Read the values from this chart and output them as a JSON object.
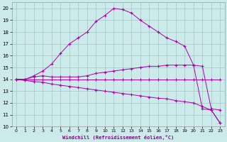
{
  "xlabel": "Windchill (Refroidissement éolien,°C)",
  "background_color": "#cceaea",
  "grid_color": "#aacccc",
  "line_color": "#aa00aa",
  "xlim": [
    -0.5,
    23.5
  ],
  "ylim": [
    10,
    20.5
  ],
  "xticks": [
    0,
    1,
    2,
    3,
    4,
    5,
    6,
    7,
    8,
    9,
    10,
    11,
    12,
    13,
    14,
    15,
    16,
    17,
    18,
    19,
    20,
    21,
    22,
    23
  ],
  "yticks": [
    10,
    11,
    12,
    13,
    14,
    15,
    16,
    17,
    18,
    19,
    20
  ],
  "series1_x": [
    0,
    1,
    2,
    3,
    4,
    5,
    6,
    7,
    8,
    9,
    10,
    11,
    12,
    13,
    14,
    15,
    16,
    17,
    18,
    19,
    20,
    21,
    22,
    23
  ],
  "series1_y": [
    14.0,
    14.0,
    14.0,
    14.0,
    14.0,
    14.0,
    14.0,
    14.0,
    14.0,
    14.0,
    14.0,
    14.0,
    14.0,
    14.0,
    14.0,
    14.0,
    14.0,
    14.0,
    14.0,
    14.0,
    14.0,
    14.0,
    14.0,
    14.0
  ],
  "series2_x": [
    0,
    1,
    2,
    3,
    4,
    5,
    6,
    7,
    8,
    9,
    10,
    11,
    12,
    13,
    14,
    15,
    16,
    17,
    18,
    19,
    20,
    21,
    22,
    23
  ],
  "series2_y": [
    14.0,
    13.9,
    13.8,
    13.75,
    13.6,
    13.5,
    13.4,
    13.3,
    13.2,
    13.1,
    13.0,
    12.9,
    12.8,
    12.7,
    12.6,
    12.5,
    12.4,
    12.35,
    12.2,
    12.1,
    12.0,
    11.7,
    11.4,
    10.3
  ],
  "series3_x": [
    0,
    1,
    2,
    3,
    4,
    5,
    6,
    7,
    8,
    9,
    10,
    11,
    12,
    13,
    14,
    15,
    16,
    17,
    18,
    19,
    20,
    21,
    22,
    23
  ],
  "series3_y": [
    14.0,
    14.0,
    14.2,
    14.3,
    14.2,
    14.2,
    14.2,
    14.2,
    14.3,
    14.5,
    14.6,
    14.7,
    14.8,
    14.9,
    15.0,
    15.1,
    15.1,
    15.2,
    15.2,
    15.2,
    15.2,
    15.1,
    11.5,
    11.4
  ],
  "series4_x": [
    0,
    1,
    2,
    3,
    4,
    5,
    6,
    7,
    8,
    9,
    10,
    11,
    12,
    13,
    14,
    15,
    16,
    17,
    18,
    19,
    20,
    21,
    22,
    23
  ],
  "series4_y": [
    14.0,
    14.0,
    14.3,
    14.7,
    15.3,
    16.2,
    17.0,
    17.5,
    18.0,
    18.9,
    19.4,
    20.0,
    19.9,
    19.6,
    19.0,
    18.5,
    18.0,
    17.5,
    17.2,
    16.8,
    15.2,
    11.5,
    11.4,
    10.3
  ]
}
